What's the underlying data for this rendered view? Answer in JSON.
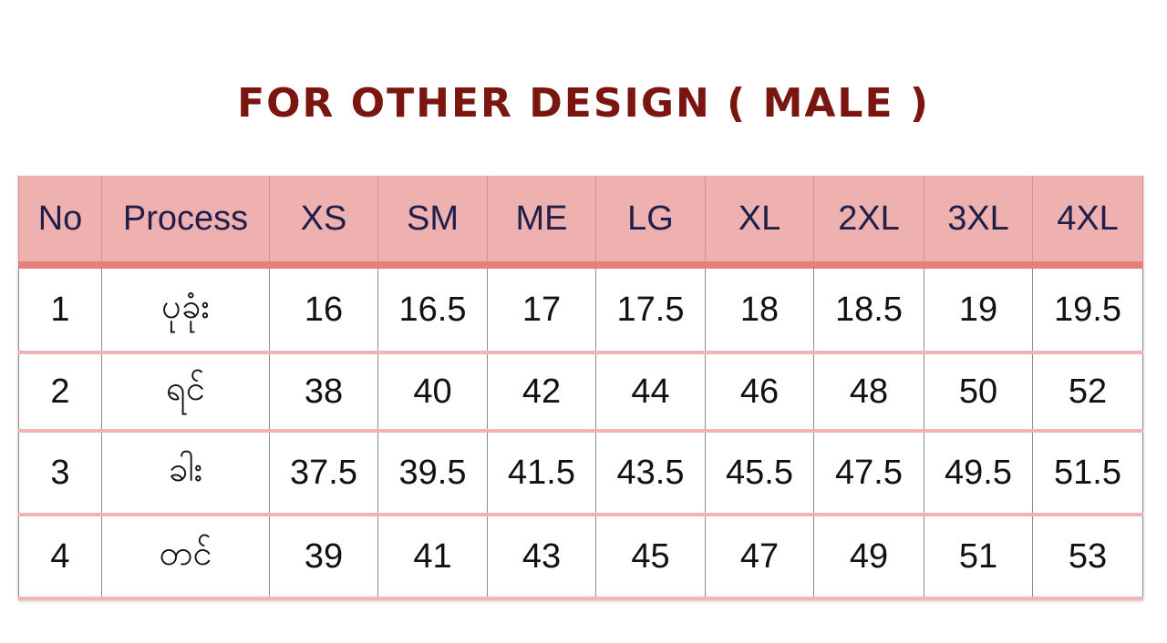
{
  "title": "For Other Design ( Male )",
  "table": {
    "headers": [
      "No",
      "Process",
      "XS",
      "SM",
      "ME",
      "LG",
      "XL",
      "2XL",
      "3XL",
      "4XL"
    ],
    "rows": [
      [
        "1",
        "ပုခုံး",
        "16",
        "16.5",
        "17",
        "17.5",
        "18",
        "18.5",
        "19",
        "19.5"
      ],
      [
        "2",
        "ရင်",
        "38",
        "40",
        "42",
        "44",
        "46",
        "48",
        "50",
        "52"
      ],
      [
        "3",
        "ခါး",
        "37.5",
        "39.5",
        "41.5",
        "43.5",
        "45.5",
        "47.5",
        "49.5",
        "51.5"
      ],
      [
        "4",
        "တင်",
        "39",
        "41",
        "43",
        "45",
        "47",
        "49",
        "51",
        "53"
      ]
    ]
  },
  "colors": {
    "title": "#7a1510",
    "header_background": "#efb0b0",
    "header_text": "#1f1f4a",
    "header_underline": "#e57f7a",
    "row_separator": "#f0b4b4"
  }
}
